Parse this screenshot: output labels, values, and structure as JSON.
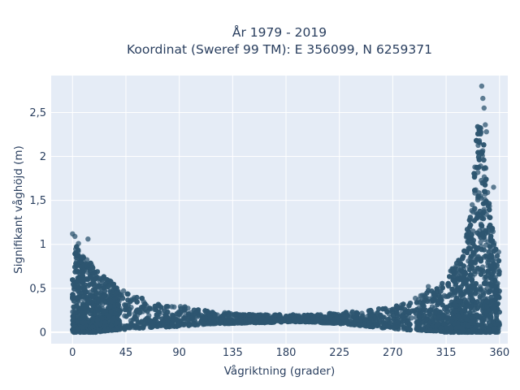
{
  "chart_data": {
    "type": "scatter",
    "title": "År 1979 - 2019",
    "subtitle": "Koordinat (Sweref 99 TM): E 356099, N 6259371",
    "xlabel": "Vågriktning (grader)",
    "ylabel": "Signifikant våghöjd (m)",
    "xlim": [
      -18,
      367
    ],
    "ylim": [
      -0.13,
      2.92
    ],
    "xticks": [
      0,
      45,
      90,
      135,
      180,
      225,
      270,
      315,
      360
    ],
    "xtick_labels": [
      "0",
      "45",
      "90",
      "135",
      "180",
      "225",
      "270",
      "315",
      "360"
    ],
    "yticks": [
      0,
      0.5,
      1,
      1.5,
      2,
      2.5
    ],
    "ytick_labels": [
      "0",
      "0,5",
      "1",
      "1,5",
      "2",
      "2,5"
    ],
    "grid": true,
    "marker_color": "#2e5670",
    "background_color": "#e5ecf6",
    "envelope": {
      "direction": [
        0,
        5,
        10,
        15,
        20,
        30,
        40,
        50,
        60,
        70,
        80,
        90,
        100,
        110,
        120,
        135,
        150,
        165,
        180,
        195,
        210,
        225,
        240,
        255,
        270,
        280,
        290,
        300,
        310,
        315,
        320,
        325,
        330,
        335,
        338,
        341,
        344,
        347,
        350,
        353,
        356,
        360
      ],
      "height_min": [
        0,
        0,
        0,
        0,
        0,
        0.02,
        0.03,
        0.04,
        0.05,
        0.06,
        0.06,
        0.07,
        0.08,
        0.09,
        0.1,
        0.1,
        0.11,
        0.11,
        0.12,
        0.12,
        0.11,
        0.1,
        0.08,
        0.06,
        0.04,
        0.03,
        0.02,
        0.02,
        0.01,
        0,
        0,
        0,
        0,
        0,
        0,
        0,
        0,
        0,
        0,
        0,
        0,
        0
      ],
      "height_max": [
        1.05,
        0.95,
        0.85,
        0.8,
        0.7,
        0.6,
        0.5,
        0.42,
        0.38,
        0.34,
        0.32,
        0.3,
        0.28,
        0.26,
        0.24,
        0.22,
        0.2,
        0.2,
        0.2,
        0.2,
        0.21,
        0.22,
        0.24,
        0.26,
        0.3,
        0.34,
        0.4,
        0.48,
        0.55,
        0.62,
        0.72,
        0.85,
        1.0,
        1.35,
        1.8,
        2.3,
        2.55,
        2.2,
        1.7,
        1.3,
        1.0,
        0.9
      ]
    },
    "notable_points": [
      {
        "x": 345,
        "y": 2.8
      },
      {
        "x": 346,
        "y": 2.66
      },
      {
        "x": 347,
        "y": 2.55
      },
      {
        "x": 348,
        "y": 2.36
      },
      {
        "x": 349,
        "y": 2.28
      },
      {
        "x": 343,
        "y": 2.18
      },
      {
        "x": 344,
        "y": 2.05
      },
      {
        "x": 340,
        "y": 1.62
      },
      {
        "x": 355,
        "y": 1.65
      },
      {
        "x": 337,
        "y": 1.45
      },
      {
        "x": 0,
        "y": 1.12
      },
      {
        "x": 2,
        "y": 1.09
      },
      {
        "x": 13,
        "y": 1.06
      },
      {
        "x": 5,
        "y": 1.01
      },
      {
        "x": 325,
        "y": 0.72
      },
      {
        "x": 300,
        "y": 0.52
      }
    ]
  }
}
